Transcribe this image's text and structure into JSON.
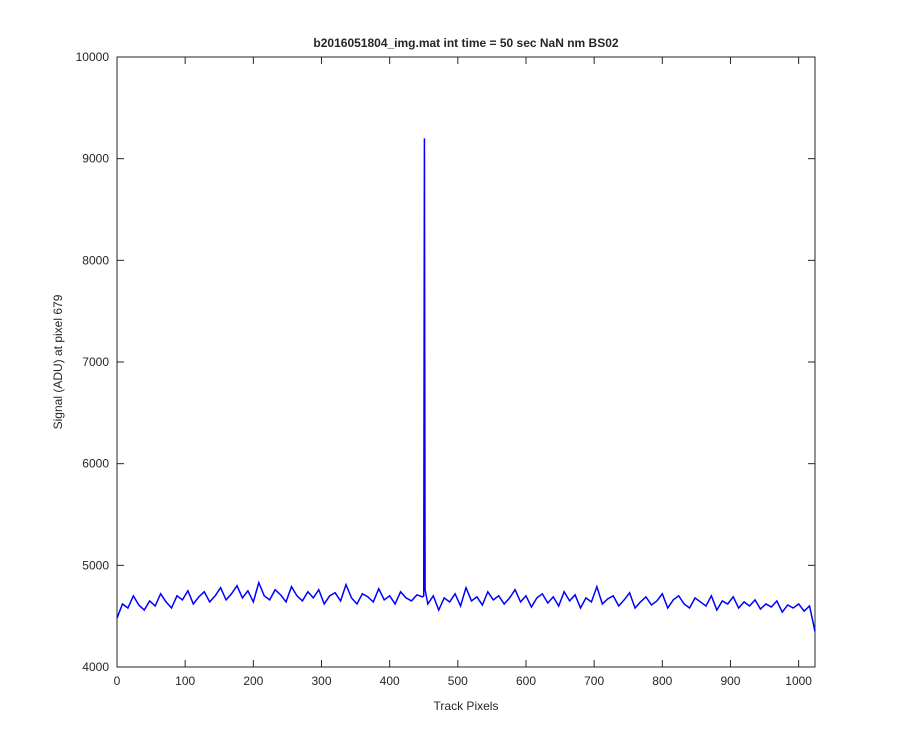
{
  "chart_data": {
    "type": "line",
    "title": "b2016051804_img.mat int time = 50 sec  NaN nm BS02",
    "x_label": "Track Pixels",
    "y_label": "Signal (ADU) at pixel 679",
    "xlim": [
      0,
      1024
    ],
    "xticks": [
      0,
      100,
      200,
      300,
      400,
      500,
      600,
      700,
      800,
      900,
      1000
    ],
    "ylim": [
      4000,
      10000
    ],
    "yticks": [
      4000,
      5000,
      6000,
      7000,
      8000,
      9000,
      10000
    ],
    "x": [
      0,
      8,
      16,
      24,
      32,
      40,
      48,
      56,
      64,
      72,
      80,
      88,
      96,
      104,
      112,
      120,
      128,
      136,
      144,
      152,
      160,
      168,
      176,
      184,
      192,
      200,
      208,
      216,
      224,
      232,
      240,
      248,
      256,
      264,
      272,
      280,
      288,
      296,
      304,
      312,
      320,
      328,
      336,
      344,
      352,
      360,
      368,
      376,
      384,
      392,
      400,
      408,
      416,
      424,
      432,
      440,
      448,
      450,
      451,
      452,
      456,
      464,
      472,
      480,
      488,
      496,
      504,
      512,
      520,
      528,
      536,
      544,
      552,
      560,
      568,
      576,
      584,
      592,
      600,
      608,
      616,
      624,
      632,
      640,
      648,
      656,
      664,
      672,
      680,
      688,
      696,
      704,
      712,
      720,
      728,
      736,
      744,
      752,
      760,
      768,
      776,
      784,
      792,
      800,
      808,
      816,
      824,
      832,
      840,
      848,
      856,
      864,
      872,
      880,
      888,
      896,
      904,
      912,
      920,
      928,
      936,
      944,
      952,
      960,
      968,
      976,
      984,
      992,
      1000,
      1008,
      1016,
      1024
    ],
    "series": [
      {
        "name": "signal",
        "color": "#0000ff",
        "values": [
          4480,
          4620,
          4580,
          4700,
          4610,
          4560,
          4650,
          4600,
          4720,
          4640,
          4580,
          4700,
          4660,
          4750,
          4620,
          4690,
          4740,
          4640,
          4700,
          4780,
          4660,
          4720,
          4800,
          4680,
          4750,
          4640,
          4830,
          4700,
          4660,
          4760,
          4710,
          4640,
          4790,
          4700,
          4650,
          4740,
          4680,
          4760,
          4620,
          4700,
          4730,
          4650,
          4810,
          4680,
          4620,
          4720,
          4690,
          4640,
          4770,
          4660,
          4700,
          4620,
          4740,
          4680,
          4650,
          4710,
          4690,
          4700,
          9200,
          4760,
          4620,
          4700,
          4560,
          4680,
          4640,
          4720,
          4600,
          4780,
          4650,
          4690,
          4610,
          4740,
          4660,
          4700,
          4620,
          4680,
          4760,
          4640,
          4700,
          4590,
          4680,
          4720,
          4630,
          4690,
          4600,
          4740,
          4650,
          4710,
          4580,
          4680,
          4640,
          4790,
          4620,
          4670,
          4700,
          4600,
          4660,
          4730,
          4580,
          4640,
          4690,
          4610,
          4650,
          4720,
          4580,
          4660,
          4700,
          4620,
          4580,
          4680,
          4640,
          4600,
          4700,
          4560,
          4650,
          4620,
          4690,
          4580,
          4640,
          4600,
          4660,
          4570,
          4620,
          4590,
          4650,
          4540,
          4610,
          4580,
          4620,
          4550,
          4600,
          4350
        ]
      }
    ]
  }
}
